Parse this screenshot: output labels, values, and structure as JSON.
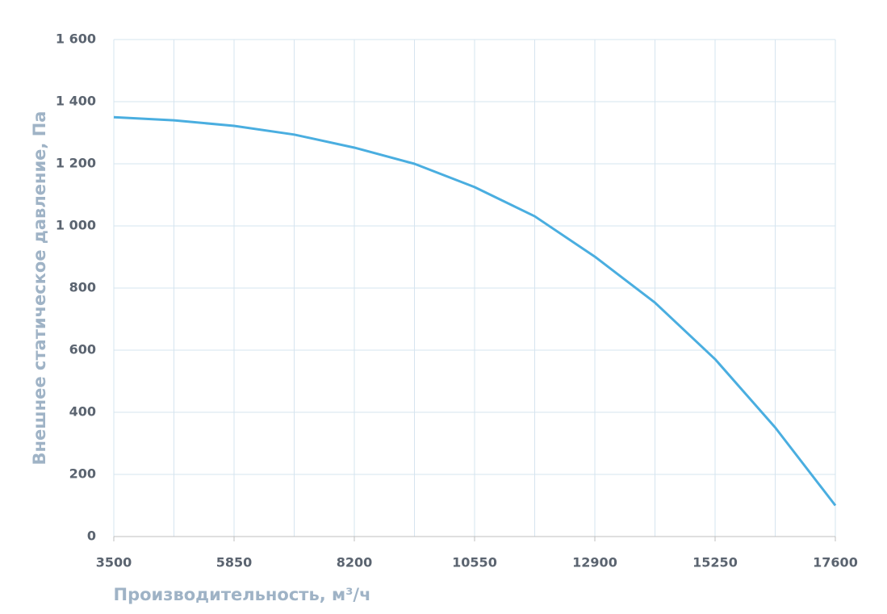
{
  "chart_data": {
    "type": "line",
    "xlabel": "Производительность, м³/ч",
    "ylabel": "Внешнее  статическое  давление, Па",
    "x": [
      3500,
      4675,
      5850,
      7025,
      8200,
      9375,
      10550,
      11725,
      12900,
      14075,
      15250,
      16425,
      17600
    ],
    "series": [
      {
        "name": "Внешнее статическое давление",
        "color": "#4aaee0",
        "values": [
          1350,
          1340,
          1322,
          1294,
          1252,
          1200,
          1125,
          1031,
          901,
          753,
          571,
          351,
          100
        ]
      }
    ],
    "xlim": [
      3500,
      17600
    ],
    "xticks": [
      3500,
      5850,
      8200,
      10550,
      12900,
      15250,
      17600
    ],
    "xgrid": [
      3500,
      4675,
      5850,
      7025,
      8200,
      9375,
      10550,
      11725,
      12900,
      14075,
      15250,
      16425,
      17600
    ],
    "ylim": [
      0,
      1600
    ],
    "yticks": [
      0,
      200,
      400,
      600,
      800,
      {
        "value": 1000,
        "label": "1 000"
      },
      {
        "value": 1200,
        "label": "1 200"
      },
      {
        "value": 1400,
        "label": "1 400"
      },
      {
        "value": 1600,
        "label": "1 600"
      }
    ],
    "grid": true
  }
}
